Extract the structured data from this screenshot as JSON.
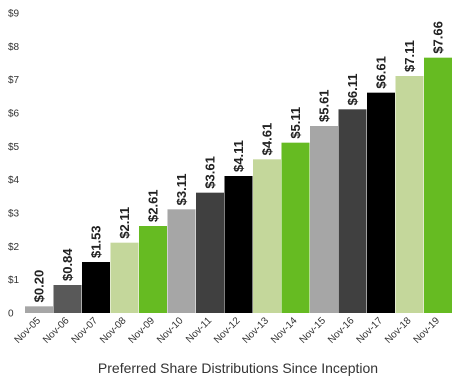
{
  "chart_data": {
    "type": "bar",
    "title": "",
    "xlabel": "Preferred Share Distributions Since Inception",
    "ylabel": "",
    "ylim": [
      0,
      9
    ],
    "ytick_labels": [
      "0",
      "$1",
      "$2",
      "$3",
      "$4",
      "$5",
      "$6",
      "$7",
      "$8",
      "$9"
    ],
    "grid": false,
    "categories": [
      "Nov-05",
      "Nov-06",
      "Nov-07",
      "Nov-08",
      "Nov-09",
      "Nov-10",
      "Nov-11",
      "Nov-12",
      "Nov-13",
      "Nov-14",
      "Nov-15",
      "Nov-16",
      "Nov-17",
      "Nov-18",
      "Nov-19"
    ],
    "values": [
      0.2,
      0.84,
      1.53,
      2.11,
      2.61,
      3.11,
      3.61,
      4.11,
      4.61,
      5.11,
      5.61,
      6.11,
      6.61,
      7.11,
      7.66
    ],
    "data_labels": [
      "$0.20",
      "$0.84",
      "$1.53",
      "$2.11",
      "$2.61",
      "$3.11",
      "$3.61",
      "$4.11",
      "$4.61",
      "$5.11",
      "$5.61",
      "$6.11",
      "$6.61",
      "$7.11",
      "$7.66"
    ],
    "bar_colors": [
      "#a6a6a6",
      "#595959",
      "#000000",
      "#c4d79b",
      "#66bb22",
      "#a6a6a6",
      "#404040",
      "#000000",
      "#c4d79b",
      "#66bb22",
      "#a6a6a6",
      "#404040",
      "#000000",
      "#c4d79b",
      "#66bb22"
    ]
  }
}
